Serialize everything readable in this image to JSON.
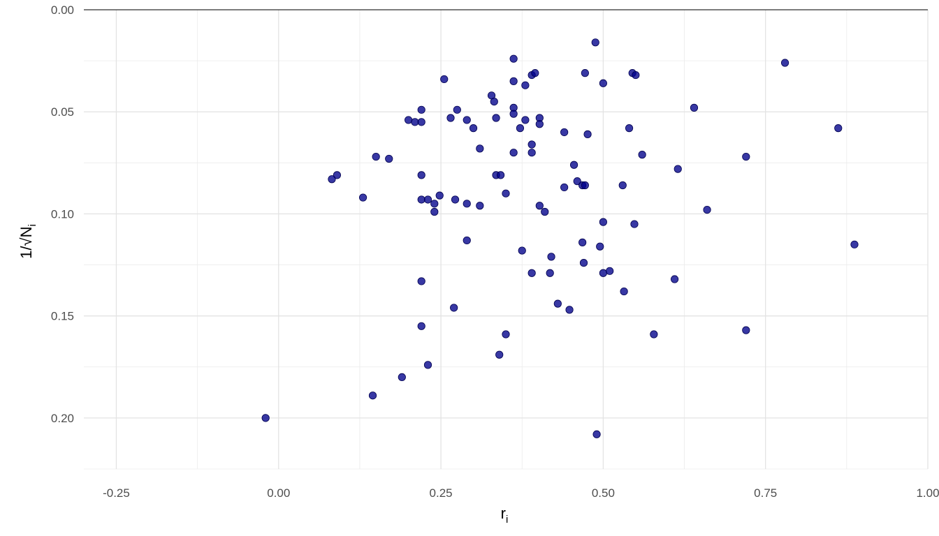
{
  "chart_data": {
    "type": "scatter",
    "xlabel": "r",
    "xlabel_sub": "i",
    "ylabel": "1/√N",
    "ylabel_sub": "i",
    "xlim": [
      -0.3,
      1.0
    ],
    "ylim": [
      0.0,
      0.225
    ],
    "y_reversed": true,
    "grid": true,
    "x_ticks": [
      {
        "value": -0.25,
        "label": "-0.25"
      },
      {
        "value": 0.0,
        "label": "0.00"
      },
      {
        "value": 0.25,
        "label": "0.25"
      },
      {
        "value": 0.5,
        "label": "0.50"
      },
      {
        "value": 0.75,
        "label": "0.75"
      },
      {
        "value": 1.0,
        "label": "1.00"
      }
    ],
    "y_ticks": [
      {
        "value": 0.0,
        "label": "0.00"
      },
      {
        "value": 0.05,
        "label": "0.05"
      },
      {
        "value": 0.1,
        "label": "0.10"
      },
      {
        "value": 0.15,
        "label": "0.15"
      },
      {
        "value": 0.2,
        "label": "0.20"
      }
    ],
    "point_color": "#00008b",
    "points": [
      {
        "x": 0.488,
        "y": 0.016
      },
      {
        "x": 0.362,
        "y": 0.024
      },
      {
        "x": 0.78,
        "y": 0.026
      },
      {
        "x": 0.255,
        "y": 0.034
      },
      {
        "x": 0.362,
        "y": 0.035
      },
      {
        "x": 0.38,
        "y": 0.037
      },
      {
        "x": 0.39,
        "y": 0.032
      },
      {
        "x": 0.395,
        "y": 0.031
      },
      {
        "x": 0.472,
        "y": 0.031
      },
      {
        "x": 0.5,
        "y": 0.036
      },
      {
        "x": 0.545,
        "y": 0.031
      },
      {
        "x": 0.55,
        "y": 0.032
      },
      {
        "x": 0.328,
        "y": 0.042
      },
      {
        "x": 0.332,
        "y": 0.045
      },
      {
        "x": 0.362,
        "y": 0.048
      },
      {
        "x": 0.362,
        "y": 0.051
      },
      {
        "x": 0.22,
        "y": 0.049
      },
      {
        "x": 0.275,
        "y": 0.049
      },
      {
        "x": 0.64,
        "y": 0.048
      },
      {
        "x": 0.2,
        "y": 0.054
      },
      {
        "x": 0.21,
        "y": 0.055
      },
      {
        "x": 0.22,
        "y": 0.055
      },
      {
        "x": 0.265,
        "y": 0.053
      },
      {
        "x": 0.29,
        "y": 0.054
      },
      {
        "x": 0.3,
        "y": 0.058
      },
      {
        "x": 0.335,
        "y": 0.053
      },
      {
        "x": 0.372,
        "y": 0.058
      },
      {
        "x": 0.38,
        "y": 0.054
      },
      {
        "x": 0.402,
        "y": 0.053
      },
      {
        "x": 0.402,
        "y": 0.056
      },
      {
        "x": 0.44,
        "y": 0.06
      },
      {
        "x": 0.476,
        "y": 0.061
      },
      {
        "x": 0.54,
        "y": 0.058
      },
      {
        "x": 0.862,
        "y": 0.058
      },
      {
        "x": 0.31,
        "y": 0.068
      },
      {
        "x": 0.362,
        "y": 0.07
      },
      {
        "x": 0.39,
        "y": 0.066
      },
      {
        "x": 0.39,
        "y": 0.07
      },
      {
        "x": 0.56,
        "y": 0.071
      },
      {
        "x": 0.15,
        "y": 0.072
      },
      {
        "x": 0.17,
        "y": 0.073
      },
      {
        "x": 0.72,
        "y": 0.072
      },
      {
        "x": 0.455,
        "y": 0.076
      },
      {
        "x": 0.615,
        "y": 0.078
      },
      {
        "x": 0.09,
        "y": 0.081
      },
      {
        "x": 0.082,
        "y": 0.083
      },
      {
        "x": 0.22,
        "y": 0.081
      },
      {
        "x": 0.335,
        "y": 0.081
      },
      {
        "x": 0.342,
        "y": 0.081
      },
      {
        "x": 0.46,
        "y": 0.084
      },
      {
        "x": 0.468,
        "y": 0.086
      },
      {
        "x": 0.472,
        "y": 0.086
      },
      {
        "x": 0.44,
        "y": 0.087
      },
      {
        "x": 0.53,
        "y": 0.086
      },
      {
        "x": 0.13,
        "y": 0.092
      },
      {
        "x": 0.22,
        "y": 0.093
      },
      {
        "x": 0.23,
        "y": 0.093
      },
      {
        "x": 0.24,
        "y": 0.095
      },
      {
        "x": 0.248,
        "y": 0.091
      },
      {
        "x": 0.272,
        "y": 0.093
      },
      {
        "x": 0.29,
        "y": 0.095
      },
      {
        "x": 0.31,
        "y": 0.096
      },
      {
        "x": 0.35,
        "y": 0.09
      },
      {
        "x": 0.24,
        "y": 0.099
      },
      {
        "x": 0.402,
        "y": 0.096
      },
      {
        "x": 0.41,
        "y": 0.099
      },
      {
        "x": 0.66,
        "y": 0.098
      },
      {
        "x": 0.5,
        "y": 0.104
      },
      {
        "x": 0.548,
        "y": 0.105
      },
      {
        "x": 0.29,
        "y": 0.113
      },
      {
        "x": 0.468,
        "y": 0.114
      },
      {
        "x": 0.495,
        "y": 0.116
      },
      {
        "x": 0.887,
        "y": 0.115
      },
      {
        "x": 0.375,
        "y": 0.118
      },
      {
        "x": 0.42,
        "y": 0.121
      },
      {
        "x": 0.47,
        "y": 0.124
      },
      {
        "x": 0.39,
        "y": 0.129
      },
      {
        "x": 0.418,
        "y": 0.129
      },
      {
        "x": 0.5,
        "y": 0.129
      },
      {
        "x": 0.51,
        "y": 0.128
      },
      {
        "x": 0.22,
        "y": 0.133
      },
      {
        "x": 0.61,
        "y": 0.132
      },
      {
        "x": 0.532,
        "y": 0.138
      },
      {
        "x": 0.43,
        "y": 0.144
      },
      {
        "x": 0.448,
        "y": 0.147
      },
      {
        "x": 0.27,
        "y": 0.146
      },
      {
        "x": 0.22,
        "y": 0.155
      },
      {
        "x": 0.72,
        "y": 0.157
      },
      {
        "x": 0.35,
        "y": 0.159
      },
      {
        "x": 0.578,
        "y": 0.159
      },
      {
        "x": 0.34,
        "y": 0.169
      },
      {
        "x": 0.23,
        "y": 0.174
      },
      {
        "x": 0.19,
        "y": 0.18
      },
      {
        "x": 0.145,
        "y": 0.189
      },
      {
        "x": -0.02,
        "y": 0.2
      },
      {
        "x": 0.49,
        "y": 0.208
      }
    ]
  }
}
